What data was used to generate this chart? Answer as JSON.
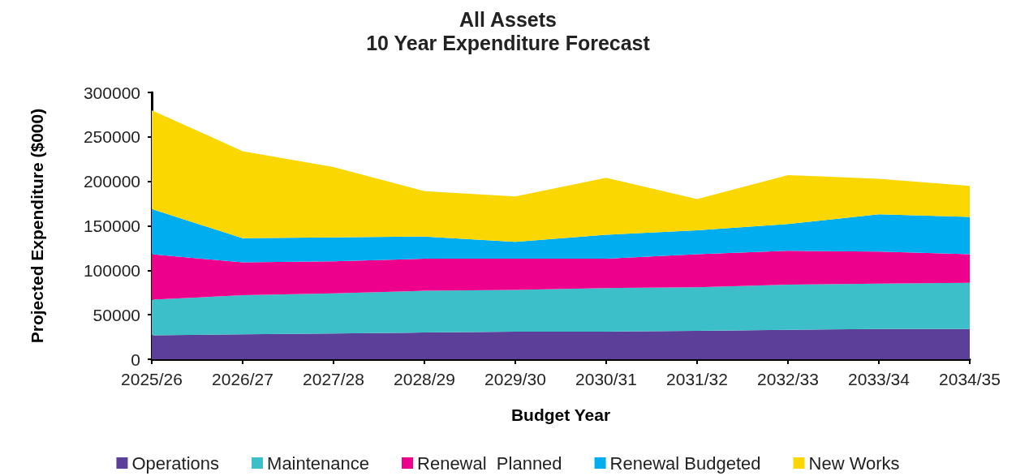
{
  "chart_data": {
    "type": "area",
    "title": "All Assets",
    "subtitle": "10 Year Expenditure Forecast",
    "xlabel": "Budget Year",
    "ylabel": "Projected Expenditure ($000)",
    "categories": [
      "2025/26",
      "2026/27",
      "2027/28",
      "2028/29",
      "2029/30",
      "2030/31",
      "2031/32",
      "2032/33",
      "2033/34",
      "2034/35"
    ],
    "stacked": true,
    "ylim": [
      0,
      300000
    ],
    "yticks": [
      0,
      50000,
      100000,
      150000,
      200000,
      250000,
      300000
    ],
    "grid": false,
    "legend": "bottom",
    "series": [
      {
        "name": "Operations",
        "color": "#5b3f99",
        "values": [
          27000,
          28000,
          29000,
          30000,
          31000,
          31000,
          32000,
          33000,
          34000,
          34000
        ]
      },
      {
        "name": "Maintenance",
        "color": "#3cbfc9",
        "values": [
          40000,
          44000,
          45000,
          47000,
          47000,
          49000,
          49000,
          51000,
          51000,
          52000
        ]
      },
      {
        "name": "Renewal  Planned",
        "color": "#ec008c",
        "values": [
          51000,
          37000,
          36000,
          36000,
          35000,
          33000,
          37000,
          38000,
          36000,
          32000
        ]
      },
      {
        "name": "Renewal Budgeted",
        "color": "#00aeef",
        "values": [
          51000,
          27000,
          27000,
          25000,
          19000,
          27000,
          27000,
          30000,
          42000,
          42000
        ]
      },
      {
        "name": "New Works",
        "color": "#fad700",
        "values": [
          111000,
          98000,
          79000,
          51000,
          51000,
          64000,
          35000,
          55000,
          40000,
          35000
        ]
      }
    ]
  }
}
